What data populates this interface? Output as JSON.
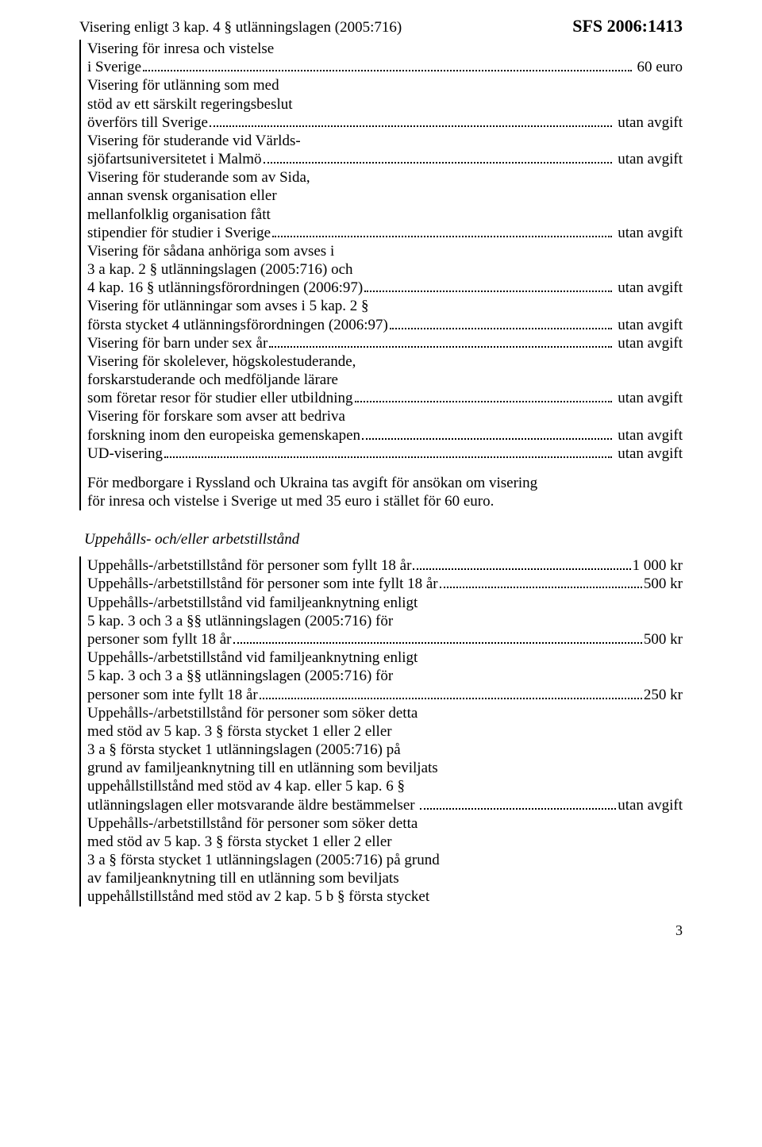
{
  "header": {
    "title": "Visering enligt 3 kap. 4 § utlänningslagen (2005:716)",
    "sfs": "SFS 2006:1413"
  },
  "block1": {
    "lines": [
      {
        "t": "plain",
        "text": "Visering för inresa och vistelse"
      },
      {
        "t": "dots",
        "label": "i Sverige",
        "value": " 60 euro"
      },
      {
        "t": "plain",
        "text": "Visering för utlänning som med"
      },
      {
        "t": "plain",
        "text": "stöd av ett särskilt regeringsbeslut"
      },
      {
        "t": "dots",
        "label": "överförs till Sverige",
        "value": " utan avgift"
      },
      {
        "t": "plain",
        "text": "Visering för studerande vid Världs-"
      },
      {
        "t": "dots",
        "label": "sjöfartsuniversitetet i Malmö",
        "value": " utan avgift"
      },
      {
        "t": "plain",
        "text": "Visering för studerande som av Sida,"
      },
      {
        "t": "plain",
        "text": "annan svensk organisation eller"
      },
      {
        "t": "plain",
        "text": "mellanfolklig organisation fått"
      },
      {
        "t": "dots",
        "label": "stipendier för studier i Sverige",
        "value": " utan avgift"
      },
      {
        "t": "plain",
        "text": "Visering för sådana anhöriga som avses i"
      },
      {
        "t": "plain",
        "text": "3 a kap. 2 § utlänningslagen (2005:716) och"
      },
      {
        "t": "dots",
        "label": "4 kap. 16 § utlänningsförordningen (2006:97)",
        "value": " utan avgift"
      },
      {
        "t": "plain",
        "text": "Visering för utlänningar som avses i 5 kap. 2 §"
      },
      {
        "t": "dots",
        "label": "första stycket 4 utlänningsförordningen (2006:97)",
        "value": " utan avgift"
      },
      {
        "t": "dots",
        "label": "Visering för barn under sex år",
        "value": " utan avgift"
      },
      {
        "t": "plain",
        "text": "Visering för skolelever, högskolestuderande,"
      },
      {
        "t": "plain",
        "text": "forskarstuderande och medföljande lärare"
      },
      {
        "t": "dots",
        "label": "som företar resor för studier eller utbildning",
        "value": " utan avgift"
      },
      {
        "t": "plain",
        "text": "Visering för forskare som avser att bedriva"
      },
      {
        "t": "dots",
        "label": "forskning inom den europeiska gemenskapen",
        "value": " utan avgift"
      },
      {
        "t": "dots",
        "label": "UD-visering",
        "value": " utan avgift"
      }
    ],
    "note1": "För medborgare i Ryssland och Ukraina tas avgift för ansökan om visering",
    "note2": "för inresa och vistelse i Sverige ut med 35 euro i stället för 60 euro."
  },
  "section2_heading": "Uppehålls- och/eller arbetstillstånd",
  "block2": {
    "lines": [
      {
        "t": "dots",
        "label": "Uppehålls-/arbetstillstånd för personer som fyllt 18 år",
        "value": "1 000 kr"
      },
      {
        "t": "dots",
        "label": "Uppehålls-/arbetstillstånd för personer som inte fyllt 18 år",
        "value": "500 kr"
      },
      {
        "t": "plain",
        "text": "Uppehålls-/arbetstillstånd vid familjeanknytning enligt"
      },
      {
        "t": "plain",
        "text": "5 kap. 3 och 3 a §§ utlänningslagen (2005:716) för"
      },
      {
        "t": "dots",
        "label": "personer som fyllt 18 år",
        "value": "500 kr"
      },
      {
        "t": "plain",
        "text": "Uppehålls-/arbetstillstånd vid familjeanknytning enligt"
      },
      {
        "t": "plain",
        "text": "5 kap. 3 och 3 a §§ utlänningslagen (2005:716) för"
      },
      {
        "t": "dots",
        "label": "personer som inte fyllt 18 år",
        "value": "250 kr"
      },
      {
        "t": "plain",
        "text": "Uppehålls-/arbetstillstånd för personer som söker detta"
      },
      {
        "t": "plain",
        "text": "med stöd av 5 kap. 3 § första stycket 1 eller 2 eller"
      },
      {
        "t": "plain",
        "text": "3 a § första stycket 1 utlänningslagen (2005:716) på"
      },
      {
        "t": "plain",
        "text": "grund av familjeanknytning till en utlänning som beviljats"
      },
      {
        "t": "plain",
        "text": "uppehållstillstånd med stöd av 4 kap. eller 5 kap. 6 §"
      },
      {
        "t": "dots",
        "label": "utlänningslagen eller motsvarande äldre bestämmelser ",
        "value": "utan avgift"
      },
      {
        "t": "plain",
        "text": "Uppehålls-/arbetstillstånd för personer som söker detta"
      },
      {
        "t": "plain",
        "text": "med stöd av 5 kap. 3 § första stycket 1 eller 2 eller"
      },
      {
        "t": "plain",
        "text": "3 a § första stycket 1 utlänningslagen (2005:716) på grund"
      },
      {
        "t": "plain",
        "text": "av familjeanknytning till en utlänning som beviljats"
      },
      {
        "t": "plain",
        "text": "uppehållstillstånd med stöd av 2 kap. 5 b § första stycket"
      }
    ]
  },
  "page_number": "3"
}
